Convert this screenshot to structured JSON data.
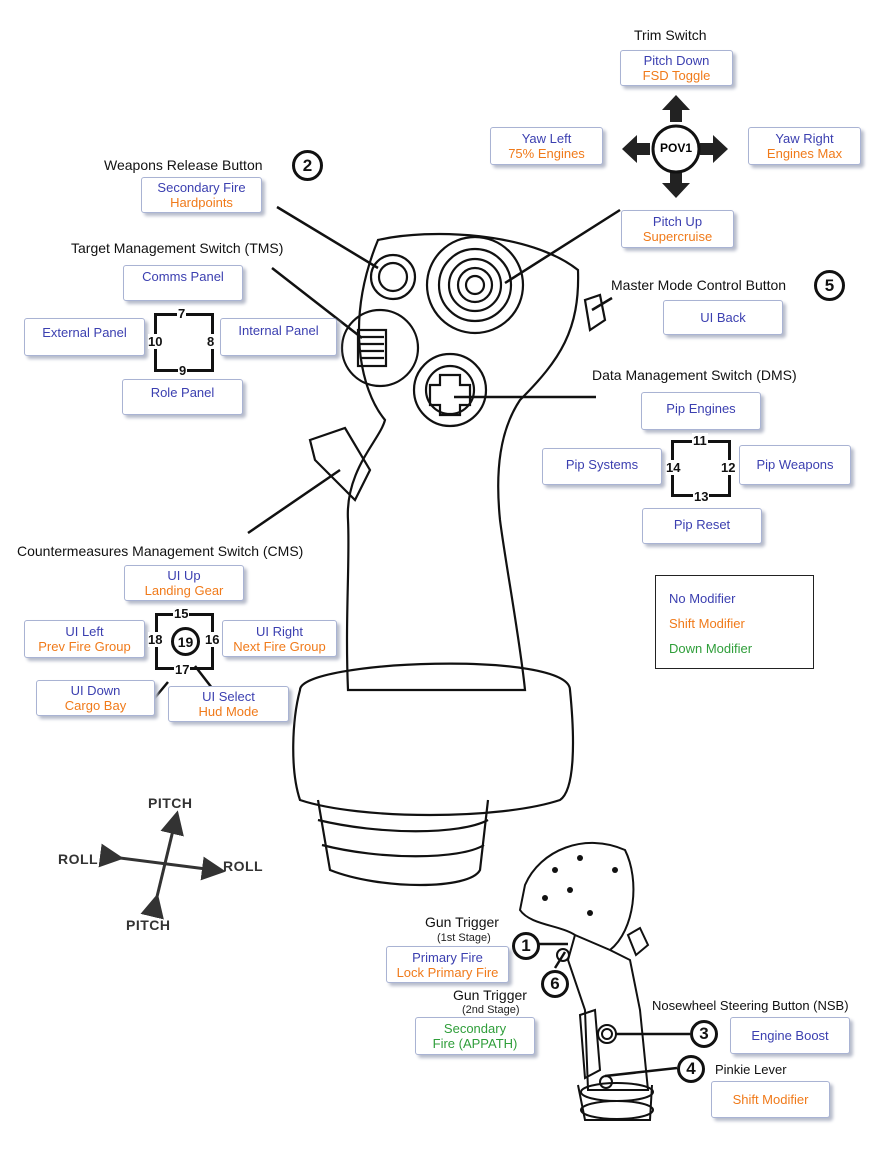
{
  "legend": {
    "no_mod": "No Modifier",
    "shift_mod": "Shift Modifier",
    "down_mod": "Down Modifier"
  },
  "trim": {
    "title": "Trim Switch",
    "center": "POV1",
    "up_1": "Pitch Down",
    "up_2": "FSD Toggle",
    "left_1": "Yaw Left",
    "left_2": "75% Engines",
    "right_1": "Yaw Right",
    "right_2": "Engines Max",
    "down_1": "Pitch Up",
    "down_2": "Supercruise"
  },
  "weapons": {
    "title": "Weapons Release Button",
    "num": "2",
    "line1": "Secondary Fire",
    "line2": "Hardpoints"
  },
  "tms": {
    "title": "Target Management Switch (TMS)",
    "up": "Comms Panel",
    "left": "External Panel",
    "right": "Internal Panel",
    "down": "Role Panel",
    "n_up": "7",
    "n_right": "8",
    "n_down": "9",
    "n_left": "10"
  },
  "master": {
    "title": "Master Mode Control Button",
    "num": "5",
    "label": "UI Back"
  },
  "dms": {
    "title": "Data Management Switch (DMS)",
    "up": "Pip Engines",
    "left": "Pip Systems",
    "right": "Pip Weapons",
    "down": "Pip Reset",
    "n_up": "11",
    "n_right": "12",
    "n_down": "13",
    "n_left": "14"
  },
  "cms": {
    "title": "Countermeasures Management Switch (CMS)",
    "up_1": "UI Up",
    "up_2": "Landing Gear",
    "left_1": "UI Left",
    "left_2": "Prev Fire Group",
    "right_1": "UI Right",
    "right_2": "Next Fire Group",
    "down_1": "UI Down",
    "down_2": "Cargo Bay",
    "sel_1": "UI Select",
    "sel_2": "Hud Mode",
    "n_up": "15",
    "n_right": "16",
    "n_down": "17",
    "n_left": "18",
    "n_center": "19"
  },
  "axes": {
    "pitch_top": "PITCH",
    "pitch_bottom": "PITCH",
    "roll_left": "ROLL",
    "roll_right": "ROLL"
  },
  "gun1": {
    "title": "Gun Trigger",
    "sub": "(1st Stage)",
    "num": "1",
    "line1": "Primary Fire",
    "line2": "Lock Primary Fire"
  },
  "gun2": {
    "title": "Gun Trigger",
    "sub": "(2nd Stage)",
    "num": "6",
    "line1": "Secondary",
    "line2": "Fire (APPATH)"
  },
  "nsb": {
    "title": "Nosewheel Steering Button (NSB)",
    "num": "3",
    "label": "Engine Boost"
  },
  "pinkie": {
    "title": "Pinkie Lever",
    "num": "4",
    "label": "Shift Modifier"
  },
  "colors": {
    "no_mod": "#3b3fb0",
    "shift_mod": "#f07a1a",
    "down_mod": "#2f9e3a"
  }
}
